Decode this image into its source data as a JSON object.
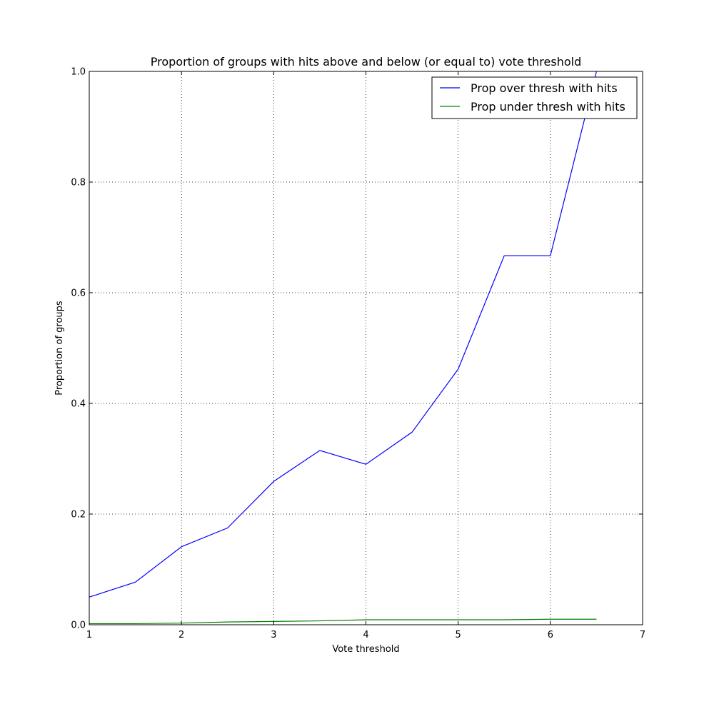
{
  "chart_data": {
    "type": "line",
    "title": "Proportion of groups with hits above and below (or equal to) vote threshold",
    "xlabel": "Vote threshold",
    "ylabel": "Proportion of groups",
    "xlim": [
      1,
      7
    ],
    "ylim": [
      0.0,
      1.0
    ],
    "xticks": [
      1,
      2,
      3,
      4,
      5,
      6,
      7
    ],
    "xtick_labels": [
      "1",
      "2",
      "3",
      "4",
      "5",
      "6",
      "7"
    ],
    "yticks": [
      0.0,
      0.2,
      0.4,
      0.6,
      0.8,
      1.0
    ],
    "ytick_labels": [
      "0.0",
      "0.2",
      "0.4",
      "0.6",
      "0.8",
      "1.0"
    ],
    "grid": true,
    "legend_position": "top-right",
    "x": [
      1.0,
      1.5,
      2.0,
      2.5,
      3.0,
      3.5,
      4.0,
      4.5,
      5.0,
      5.5,
      6.0,
      6.5
    ],
    "series": [
      {
        "name": "Prop over thresh with hits",
        "color": "#0000ff",
        "values": [
          0.05,
          0.077,
          0.141,
          0.175,
          0.259,
          0.315,
          0.29,
          0.348,
          0.462,
          0.667,
          0.667,
          1.0
        ]
      },
      {
        "name": "Prop under thresh with hits",
        "color": "#008000",
        "values": [
          0.002,
          0.002,
          0.003,
          0.005,
          0.006,
          0.007,
          0.009,
          0.009,
          0.009,
          0.009,
          0.01,
          0.01
        ]
      }
    ]
  }
}
